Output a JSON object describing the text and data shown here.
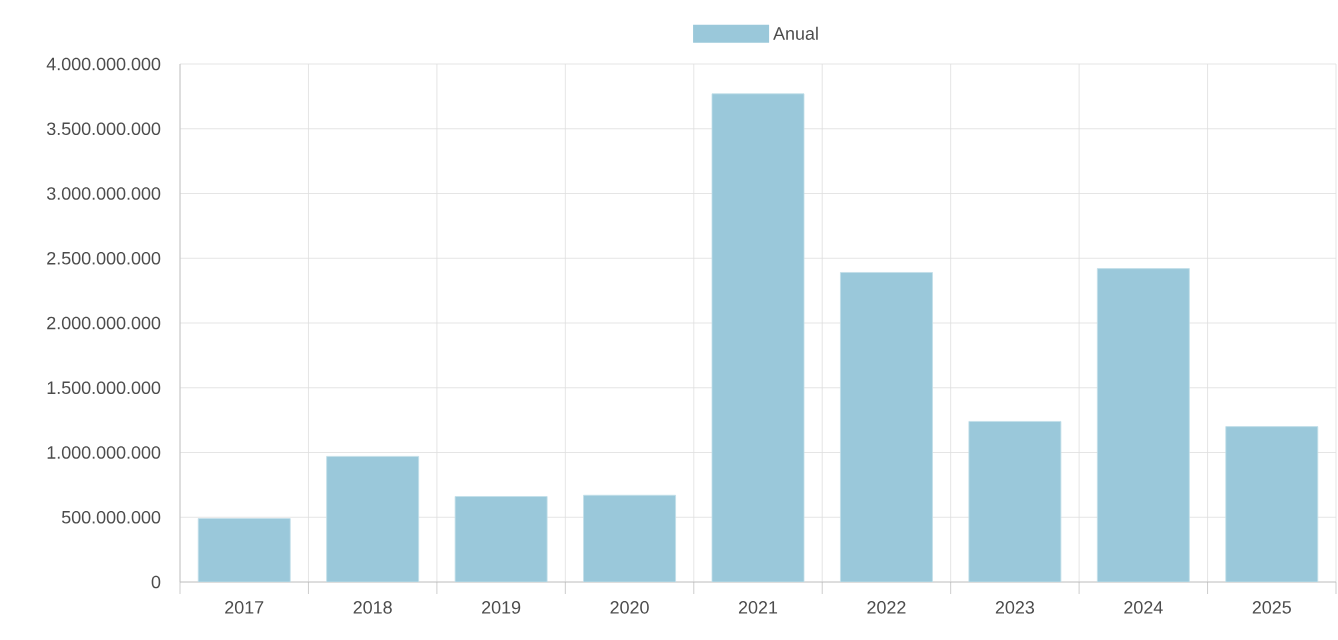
{
  "chart_data": {
    "type": "bar",
    "categories": [
      "2017",
      "2018",
      "2019",
      "2020",
      "2021",
      "2022",
      "2023",
      "2024",
      "2025"
    ],
    "series": [
      {
        "name": "Anual",
        "color": "#9ac8da",
        "values": [
          490000000,
          970000000,
          660000000,
          670000000,
          3770000000,
          2390000000,
          1240000000,
          2420000000,
          1200000000
        ]
      }
    ],
    "ylim": [
      0,
      4000000000
    ],
    "yticks": [
      {
        "value": 0,
        "label": "0"
      },
      {
        "value": 500000000,
        "label": "500.000.000"
      },
      {
        "value": 1000000000,
        "label": "1.000.000.000"
      },
      {
        "value": 1500000000,
        "label": "1.500.000.000"
      },
      {
        "value": 2000000000,
        "label": "2.000.000.000"
      },
      {
        "value": 2500000000,
        "label": "2.500.000.000"
      },
      {
        "value": 3000000000,
        "label": "3.000.000.000"
      },
      {
        "value": 3500000000,
        "label": "3.500.000.000"
      },
      {
        "value": 4000000000,
        "label": "4.000.000.000"
      }
    ],
    "grid": true,
    "legend": "top"
  }
}
